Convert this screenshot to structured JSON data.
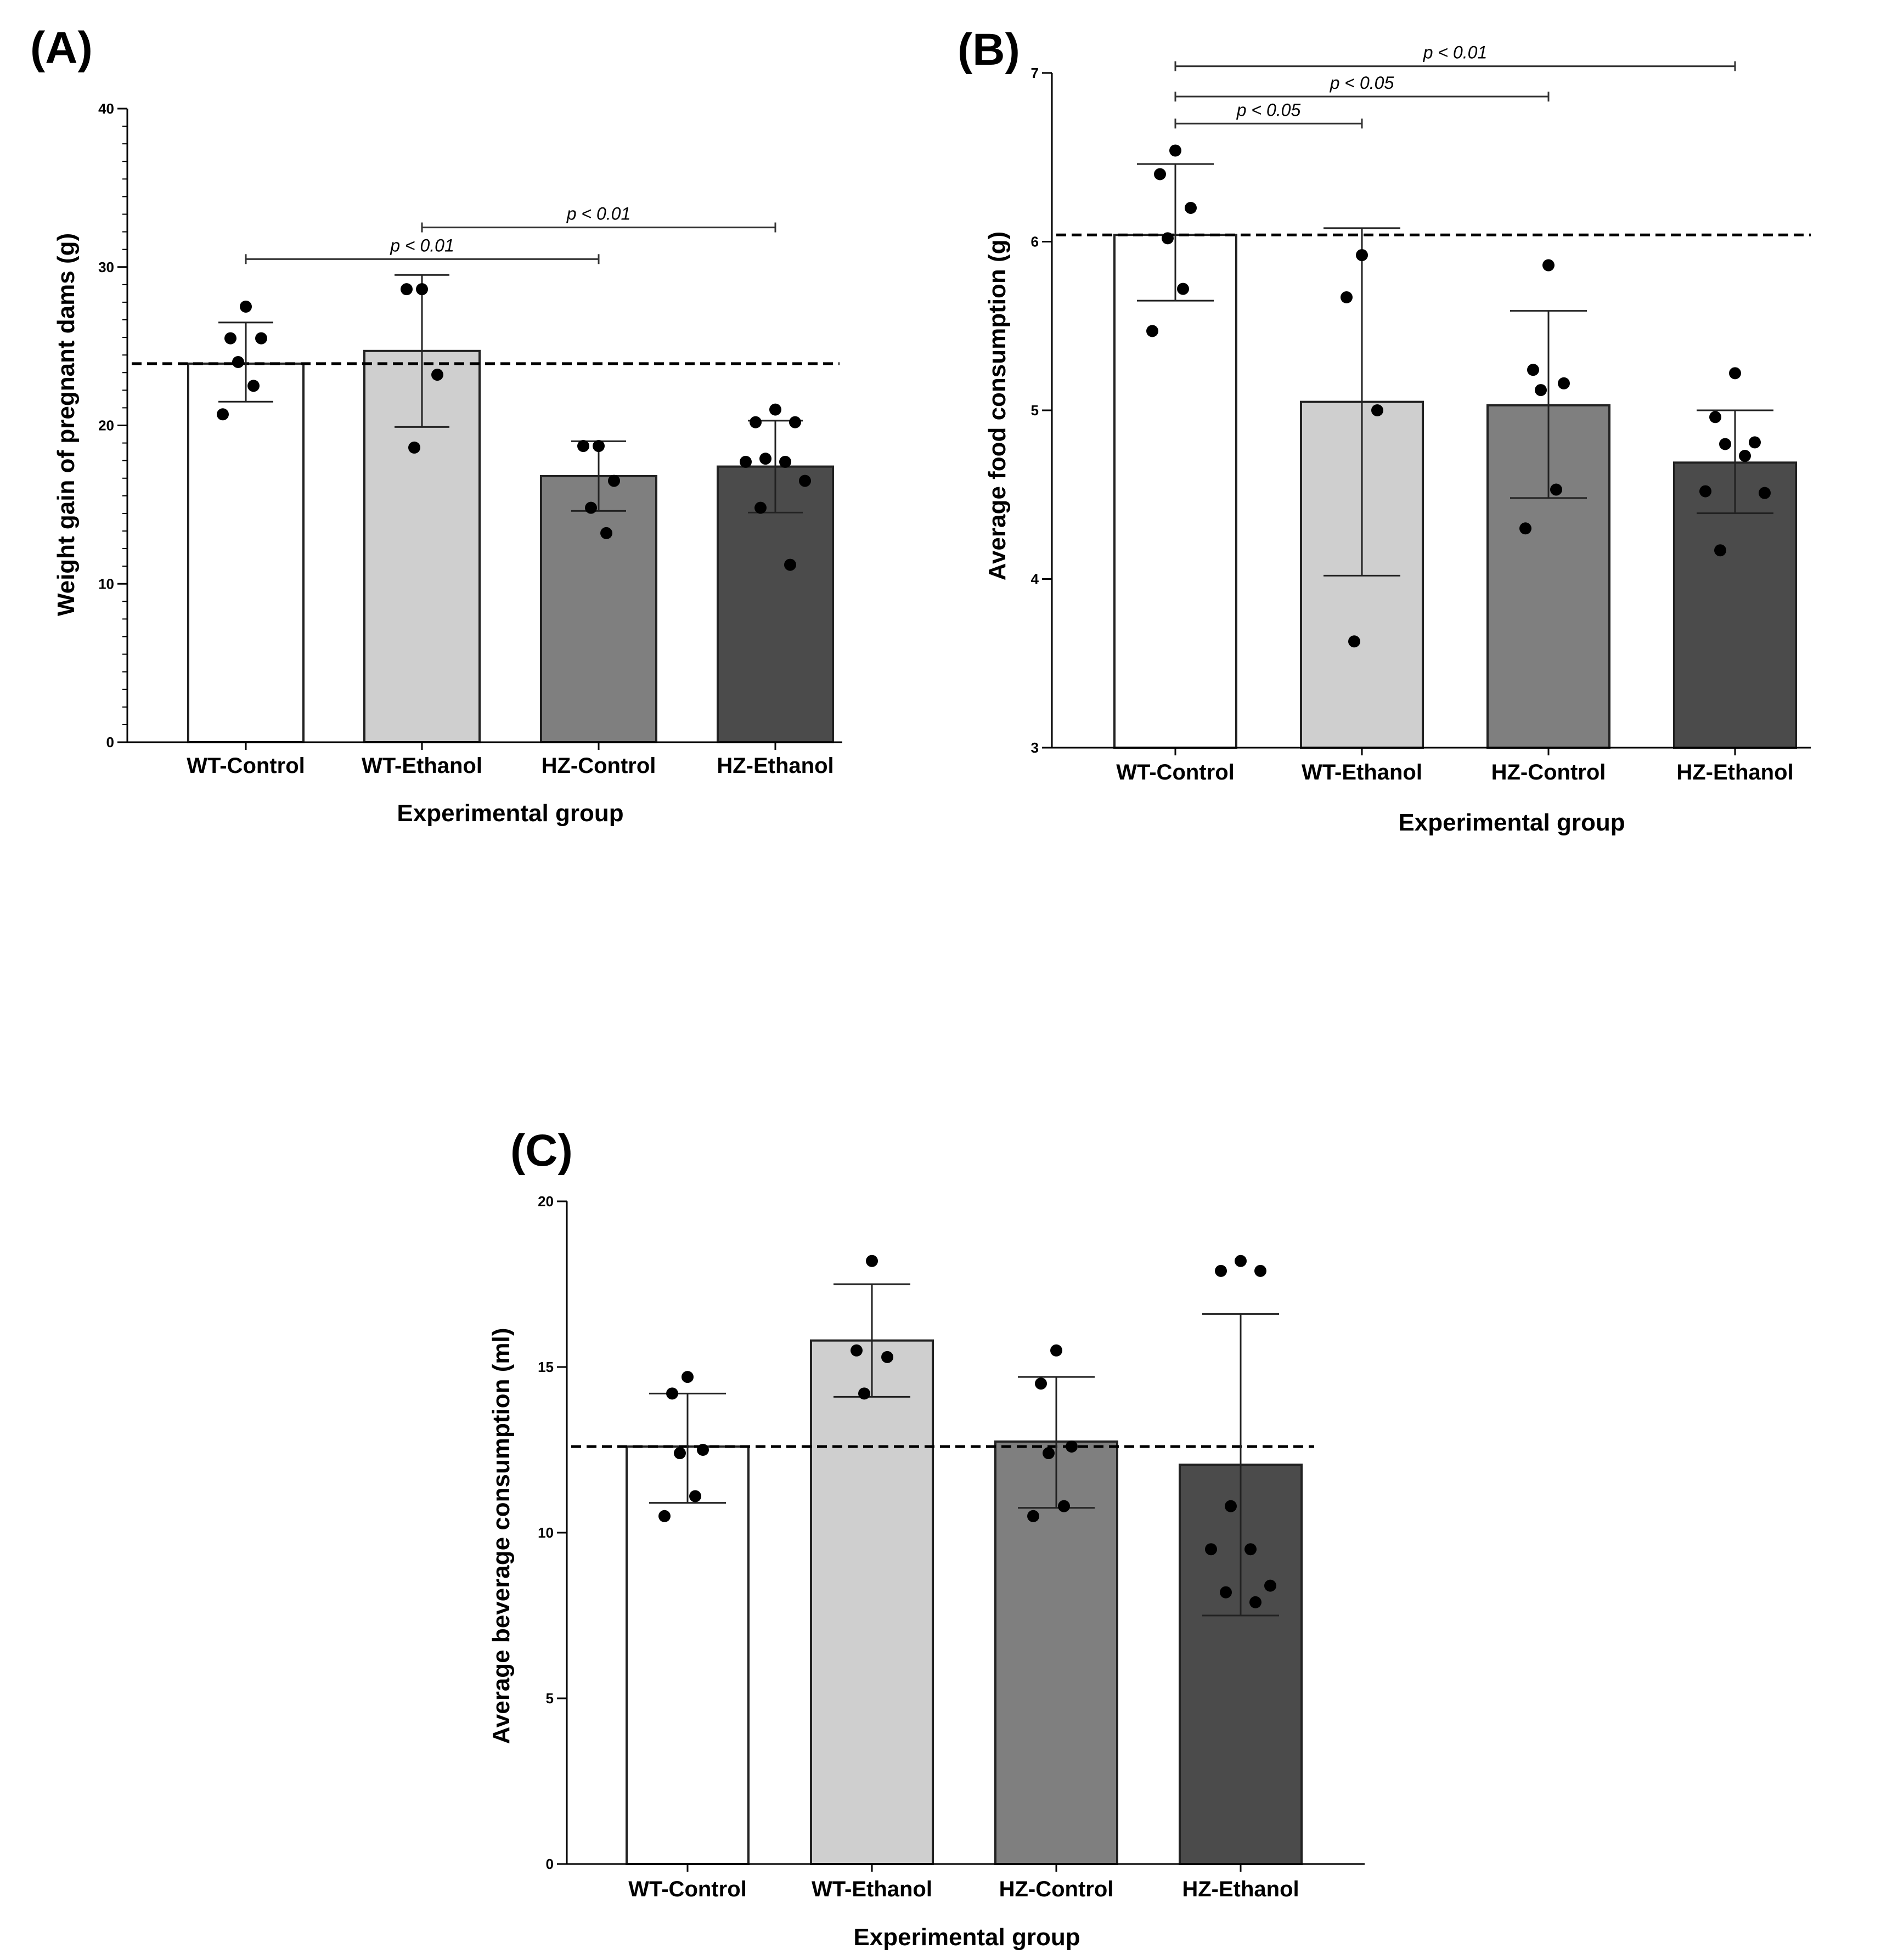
{
  "figure": {
    "background": "#ffffff"
  },
  "chart_data": [
    {
      "panel": "(A)",
      "type": "bar",
      "categories": [
        "WT-Control",
        "WT-Ethanol",
        "HZ-Control",
        "HZ-Ethanol"
      ],
      "colors": [
        "#ffffff",
        "#cfcfcf",
        "#7f7f7f",
        "#4b4b4b"
      ],
      "values": [
        23.9,
        24.7,
        16.8,
        17.4
      ],
      "error_low": [
        21.5,
        19.9,
        14.6,
        14.5
      ],
      "error_high": [
        26.5,
        29.5,
        19.0,
        20.3
      ],
      "points": [
        [
          27.5,
          25.5,
          25.5,
          24.0,
          22.5,
          20.7
        ],
        [
          28.6,
          28.6,
          23.2,
          18.6
        ],
        [
          18.7,
          18.7,
          16.5,
          14.8,
          13.2
        ],
        [
          21.0,
          20.2,
          20.2,
          17.9,
          17.7,
          17.7,
          16.5,
          14.8,
          11.2
        ]
      ],
      "reference_line": 23.9,
      "ylim": [
        0,
        40
      ],
      "yticks": [
        "0",
        "10",
        "20",
        "30",
        "40"
      ],
      "xlabel": "Experimental group",
      "ylabel": "Weight gain of pregnant dams (g)",
      "significance": [
        {
          "from": 0,
          "to": 2,
          "y": 30.5,
          "label": "p < 0.01"
        },
        {
          "from": 1,
          "to": 3,
          "y": 32.5,
          "label": "p < 0.01"
        }
      ]
    },
    {
      "panel": "(B)",
      "type": "bar",
      "categories": [
        "WT-Control",
        "WT-Ethanol",
        "HZ-Control",
        "HZ-Ethanol"
      ],
      "colors": [
        "#ffffff",
        "#cfcfcf",
        "#7f7f7f",
        "#4b4b4b"
      ],
      "values": [
        6.04,
        5.05,
        5.03,
        4.69
      ],
      "error_low": [
        5.65,
        4.02,
        4.48,
        4.39
      ],
      "error_high": [
        6.46,
        6.08,
        5.59,
        5.0
      ],
      "points": [
        [
          6.54,
          6.4,
          6.2,
          6.02,
          5.72,
          5.47
        ],
        [
          5.92,
          5.67,
          5.0,
          3.63
        ],
        [
          5.86,
          5.24,
          5.16,
          5.12,
          4.53,
          4.3
        ],
        [
          5.22,
          4.96,
          4.81,
          4.8,
          4.73,
          4.52,
          4.51,
          4.17
        ]
      ],
      "reference_line": 6.04,
      "ylim": [
        3,
        7
      ],
      "yticks": [
        "3",
        "4",
        "5",
        "6",
        "7"
      ],
      "xlabel": "Experimental group",
      "ylabel": "Average food consumption (g)",
      "significance": [
        {
          "from": 0,
          "to": 1,
          "y": 6.7,
          "label": "p < 0.05"
        },
        {
          "from": 0,
          "to": 2,
          "y": 6.86,
          "label": "p < 0.05"
        },
        {
          "from": 0,
          "to": 3,
          "y": 7.04,
          "label": "p < 0.01"
        }
      ]
    },
    {
      "panel": "(C)",
      "type": "bar",
      "categories": [
        "WT-Control",
        "WT-Ethanol",
        "HZ-Control",
        "HZ-Ethanol"
      ],
      "colors": [
        "#ffffff",
        "#cfcfcf",
        "#7f7f7f",
        "#4b4b4b"
      ],
      "values": [
        12.6,
        15.8,
        12.75,
        12.05
      ],
      "error_low": [
        10.9,
        14.1,
        10.75,
        7.5
      ],
      "error_high": [
        14.2,
        17.5,
        14.7,
        16.6
      ],
      "points": [
        [
          14.7,
          14.2,
          12.5,
          12.4,
          11.1,
          10.5
        ],
        [
          18.2,
          15.5,
          15.3,
          14.2
        ],
        [
          15.5,
          14.5,
          12.6,
          12.4,
          10.8,
          10.5
        ],
        [
          18.2,
          17.9,
          17.9,
          10.8,
          9.5,
          9.5,
          8.4,
          8.2,
          7.9
        ]
      ],
      "reference_line": 12.6,
      "ylim": [
        0,
        20
      ],
      "yticks": [
        "0",
        "5",
        "10",
        "15",
        "20"
      ],
      "xlabel": "Experimental group",
      "ylabel": "Average beverage consumption (ml)",
      "significance": []
    }
  ]
}
